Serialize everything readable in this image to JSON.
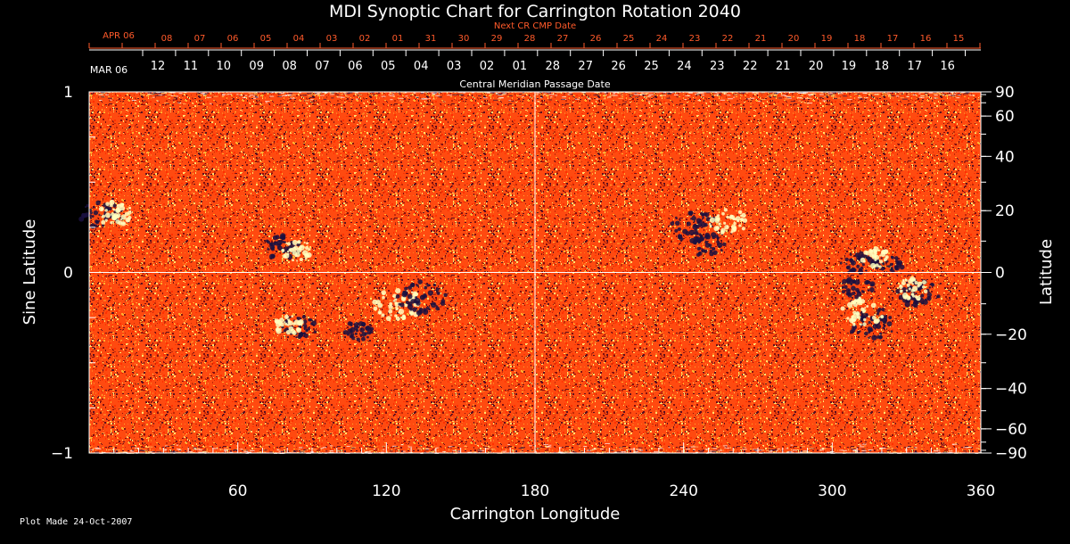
{
  "chart_data": {
    "type": "heatmap",
    "title": "MDI Synoptic Chart for Carrington Rotation 2040",
    "xlabel": "Carrington Longitude",
    "ylabel_left": "Sine Latitude",
    "ylabel_right": "Latitude",
    "xlim": [
      0,
      360
    ],
    "ylim": [
      -1,
      1
    ],
    "x_ticks": [
      60,
      120,
      180,
      240,
      300,
      360
    ],
    "y_ticks_left": [
      "1",
      "0",
      "−1"
    ],
    "y_ticks_right": [
      "90",
      "60",
      "40",
      "20",
      "0",
      "−20",
      "−40",
      "−60",
      "−90"
    ],
    "top_axis_title": "Next CR CMP Date",
    "top_axis_month": "APR 06",
    "top_axis_dates": [
      "08",
      "07",
      "06",
      "05",
      "04",
      "03",
      "02",
      "01",
      "31",
      "30",
      "29",
      "28",
      "27",
      "26",
      "25",
      "24",
      "23",
      "22",
      "21",
      "20",
      "19",
      "18",
      "17",
      "16",
      "15"
    ],
    "bottom_axis_title": "Central Meridian Passage Date",
    "bottom_axis_month": "MAR 06",
    "bottom_axis_dates": [
      "12",
      "11",
      "10",
      "09",
      "08",
      "07",
      "06",
      "05",
      "04",
      "03",
      "02",
      "01",
      "28",
      "27",
      "26",
      "25",
      "24",
      "23",
      "22",
      "21",
      "20",
      "19",
      "18",
      "17",
      "16"
    ],
    "colors": {
      "background": "#000000",
      "field": "#ff4a10",
      "positive": "#ffffc0",
      "negative": "#1a1040",
      "accent_label": "#ff5a2a"
    },
    "active_regions": [
      {
        "lon": 5,
        "lat": 0.32,
        "polarity": "negative",
        "strength": 0.8
      },
      {
        "lon": 10,
        "lat": 0.32,
        "polarity": "positive",
        "strength": 0.7
      },
      {
        "lon": 78,
        "lat": 0.14,
        "polarity": "negative",
        "strength": 0.6
      },
      {
        "lon": 84,
        "lat": 0.12,
        "polarity": "positive",
        "strength": 0.5
      },
      {
        "lon": 125,
        "lat": -0.18,
        "polarity": "positive",
        "strength": 1.0
      },
      {
        "lon": 134,
        "lat": -0.14,
        "polarity": "negative",
        "strength": 1.0
      },
      {
        "lon": 85,
        "lat": -0.3,
        "polarity": "negative",
        "strength": 0.6
      },
      {
        "lon": 80,
        "lat": -0.29,
        "polarity": "positive",
        "strength": 0.4
      },
      {
        "lon": 109,
        "lat": -0.32,
        "polarity": "negative",
        "strength": 0.4
      },
      {
        "lon": 245,
        "lat": 0.25,
        "polarity": "negative",
        "strength": 1.0
      },
      {
        "lon": 258,
        "lat": 0.28,
        "polarity": "positive",
        "strength": 0.7
      },
      {
        "lon": 250,
        "lat": 0.15,
        "polarity": "negative",
        "strength": 0.6
      },
      {
        "lon": 335,
        "lat": -0.12,
        "polarity": "negative",
        "strength": 0.8
      },
      {
        "lon": 316,
        "lat": -0.28,
        "polarity": "negative",
        "strength": 1.0
      },
      {
        "lon": 312,
        "lat": -0.22,
        "polarity": "positive",
        "strength": 0.8
      },
      {
        "lon": 310,
        "lat": -0.08,
        "polarity": "negative",
        "strength": 0.5
      },
      {
        "lon": 332,
        "lat": -0.1,
        "polarity": "positive",
        "strength": 0.6
      },
      {
        "lon": 310,
        "lat": 0.05,
        "polarity": "negative",
        "strength": 0.5
      },
      {
        "lon": 322,
        "lat": 0.04,
        "polarity": "negative",
        "strength": 0.5
      },
      {
        "lon": 318,
        "lat": 0.08,
        "polarity": "positive",
        "strength": 0.4
      }
    ],
    "grid": false
  },
  "footer": {
    "plot_made": "Plot Made 24-Oct-2007"
  }
}
